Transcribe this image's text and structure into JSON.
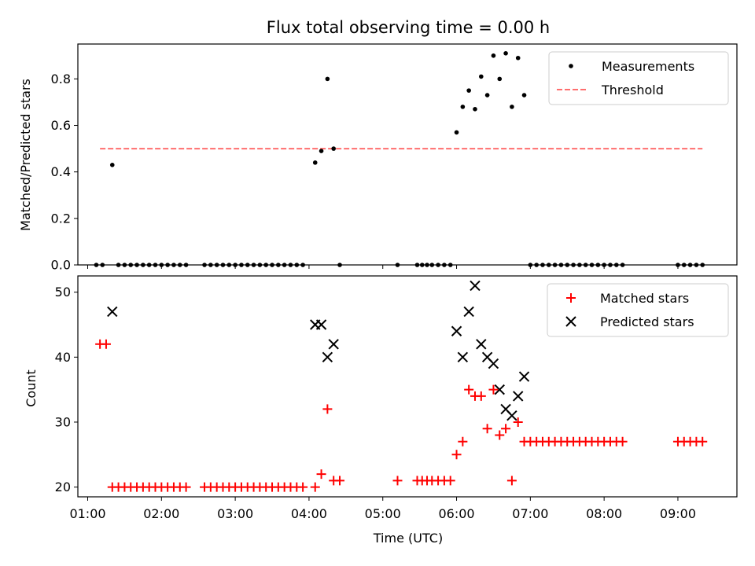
{
  "chart_data": [
    {
      "type": "scatter",
      "title": "Flux total observing time = 0.00 h",
      "ylabel": "Matched/Predicted stars",
      "xlabel": "",
      "xlim": [
        "00:52",
        "09:48"
      ],
      "ylim": [
        0,
        0.95
      ],
      "yticks": [
        "0.0",
        "0.2",
        "0.4",
        "0.6",
        "0.8"
      ],
      "legend_placement": "top-right",
      "series": [
        {
          "name": "Measurements",
          "color": "#000000",
          "marker": "dot",
          "points": [
            [
              "01:07",
              0
            ],
            [
              "01:12",
              0
            ],
            [
              "01:20",
              0.43
            ],
            [
              "01:25",
              0
            ],
            [
              "01:30",
              0
            ],
            [
              "01:35",
              0
            ],
            [
              "01:40",
              0
            ],
            [
              "01:45",
              0
            ],
            [
              "01:50",
              0
            ],
            [
              "01:55",
              0
            ],
            [
              "02:00",
              0
            ],
            [
              "02:05",
              0
            ],
            [
              "02:10",
              0
            ],
            [
              "02:15",
              0
            ],
            [
              "02:20",
              0
            ],
            [
              "02:35",
              0
            ],
            [
              "02:40",
              0
            ],
            [
              "02:45",
              0
            ],
            [
              "02:50",
              0
            ],
            [
              "02:55",
              0
            ],
            [
              "03:00",
              0
            ],
            [
              "03:05",
              0
            ],
            [
              "03:10",
              0
            ],
            [
              "03:15",
              0
            ],
            [
              "03:20",
              0
            ],
            [
              "03:25",
              0
            ],
            [
              "03:30",
              0
            ],
            [
              "03:35",
              0
            ],
            [
              "03:40",
              0
            ],
            [
              "03:45",
              0
            ],
            [
              "03:50",
              0
            ],
            [
              "03:55",
              0
            ],
            [
              "04:05",
              0.44
            ],
            [
              "04:10",
              0.49
            ],
            [
              "04:15",
              0.8
            ],
            [
              "04:20",
              0.5
            ],
            [
              "04:25",
              0
            ],
            [
              "05:12",
              0
            ],
            [
              "05:28",
              0
            ],
            [
              "05:32",
              0
            ],
            [
              "05:36",
              0
            ],
            [
              "05:40",
              0
            ],
            [
              "05:45",
              0
            ],
            [
              "05:50",
              0
            ],
            [
              "05:55",
              0
            ],
            [
              "06:00",
              0.57
            ],
            [
              "06:05",
              0.68
            ],
            [
              "06:10",
              0.75
            ],
            [
              "06:15",
              0.67
            ],
            [
              "06:20",
              0.81
            ],
            [
              "06:25",
              0.73
            ],
            [
              "06:30",
              0.9
            ],
            [
              "06:35",
              0.8
            ],
            [
              "06:40",
              0.91
            ],
            [
              "06:45",
              0.68
            ],
            [
              "06:50",
              0.89
            ],
            [
              "06:55",
              0.73
            ],
            [
              "07:00",
              0
            ],
            [
              "07:05",
              0
            ],
            [
              "07:10",
              0
            ],
            [
              "07:15",
              0
            ],
            [
              "07:20",
              0
            ],
            [
              "07:25",
              0
            ],
            [
              "07:30",
              0
            ],
            [
              "07:35",
              0
            ],
            [
              "07:40",
              0
            ],
            [
              "07:45",
              0
            ],
            [
              "07:50",
              0
            ],
            [
              "07:55",
              0
            ],
            [
              "08:00",
              0
            ],
            [
              "08:05",
              0
            ],
            [
              "08:10",
              0
            ],
            [
              "08:15",
              0
            ],
            [
              "09:00",
              0
            ],
            [
              "09:05",
              0
            ],
            [
              "09:10",
              0
            ],
            [
              "09:15",
              0
            ],
            [
              "09:20",
              0
            ]
          ]
        },
        {
          "name": "Threshold",
          "color": "#ff6e6e",
          "style": "dashed",
          "line": [
            [
              "01:10",
              0.5
            ],
            [
              "09:20",
              0.5
            ]
          ]
        }
      ]
    },
    {
      "type": "scatter",
      "title": "",
      "ylabel": "Count",
      "xlabel": "Time (UTC)",
      "xlim": [
        "00:52",
        "09:48"
      ],
      "ylim": [
        18.5,
        52.5
      ],
      "yticks": [
        "20",
        "30",
        "40",
        "50"
      ],
      "xticks": [
        "01:00",
        "02:00",
        "03:00",
        "04:00",
        "05:00",
        "06:00",
        "07:00",
        "08:00",
        "09:00"
      ],
      "legend_placement": "top-right",
      "series": [
        {
          "name": "Matched stars",
          "color": "#ff0000",
          "marker": "plus",
          "points": [
            [
              "01:10",
              42
            ],
            [
              "01:15",
              42
            ],
            [
              "01:20",
              20
            ],
            [
              "01:25",
              20
            ],
            [
              "01:30",
              20
            ],
            [
              "01:35",
              20
            ],
            [
              "01:40",
              20
            ],
            [
              "01:45",
              20
            ],
            [
              "01:50",
              20
            ],
            [
              "01:55",
              20
            ],
            [
              "02:00",
              20
            ],
            [
              "02:05",
              20
            ],
            [
              "02:10",
              20
            ],
            [
              "02:15",
              20
            ],
            [
              "02:20",
              20
            ],
            [
              "02:35",
              20
            ],
            [
              "02:40",
              20
            ],
            [
              "02:45",
              20
            ],
            [
              "02:50",
              20
            ],
            [
              "02:55",
              20
            ],
            [
              "03:00",
              20
            ],
            [
              "03:05",
              20
            ],
            [
              "03:10",
              20
            ],
            [
              "03:15",
              20
            ],
            [
              "03:20",
              20
            ],
            [
              "03:25",
              20
            ],
            [
              "03:30",
              20
            ],
            [
              "03:35",
              20
            ],
            [
              "03:40",
              20
            ],
            [
              "03:45",
              20
            ],
            [
              "03:50",
              20
            ],
            [
              "03:55",
              20
            ],
            [
              "04:05",
              20
            ],
            [
              "04:10",
              22
            ],
            [
              "04:15",
              32
            ],
            [
              "04:20",
              21
            ],
            [
              "04:25",
              21
            ],
            [
              "05:12",
              21
            ],
            [
              "05:28",
              21
            ],
            [
              "05:32",
              21
            ],
            [
              "05:36",
              21
            ],
            [
              "05:40",
              21
            ],
            [
              "05:45",
              21
            ],
            [
              "05:50",
              21
            ],
            [
              "05:55",
              21
            ],
            [
              "06:00",
              25
            ],
            [
              "06:05",
              27
            ],
            [
              "06:10",
              35
            ],
            [
              "06:15",
              34
            ],
            [
              "06:20",
              34
            ],
            [
              "06:25",
              29
            ],
            [
              "06:30",
              35
            ],
            [
              "06:35",
              28
            ],
            [
              "06:40",
              29
            ],
            [
              "06:45",
              21
            ],
            [
              "06:50",
              30
            ],
            [
              "06:55",
              27
            ],
            [
              "07:00",
              27
            ],
            [
              "07:05",
              27
            ],
            [
              "07:10",
              27
            ],
            [
              "07:15",
              27
            ],
            [
              "07:20",
              27
            ],
            [
              "07:25",
              27
            ],
            [
              "07:30",
              27
            ],
            [
              "07:35",
              27
            ],
            [
              "07:40",
              27
            ],
            [
              "07:45",
              27
            ],
            [
              "07:50",
              27
            ],
            [
              "07:55",
              27
            ],
            [
              "08:00",
              27
            ],
            [
              "08:05",
              27
            ],
            [
              "08:10",
              27
            ],
            [
              "08:15",
              27
            ],
            [
              "09:00",
              27
            ],
            [
              "09:05",
              27
            ],
            [
              "09:10",
              27
            ],
            [
              "09:15",
              27
            ],
            [
              "09:20",
              27
            ]
          ]
        },
        {
          "name": "Predicted stars",
          "color": "#000000",
          "marker": "x",
          "points": [
            [
              "01:20",
              47
            ],
            [
              "04:05",
              45
            ],
            [
              "04:10",
              45
            ],
            [
              "04:15",
              40
            ],
            [
              "04:20",
              42
            ],
            [
              "06:00",
              44
            ],
            [
              "06:05",
              40
            ],
            [
              "06:10",
              47
            ],
            [
              "06:15",
              51
            ],
            [
              "06:20",
              42
            ],
            [
              "06:25",
              40
            ],
            [
              "06:30",
              39
            ],
            [
              "06:35",
              35
            ],
            [
              "06:40",
              32
            ],
            [
              "06:45",
              31
            ],
            [
              "06:50",
              34
            ],
            [
              "06:55",
              37
            ]
          ]
        }
      ]
    }
  ]
}
